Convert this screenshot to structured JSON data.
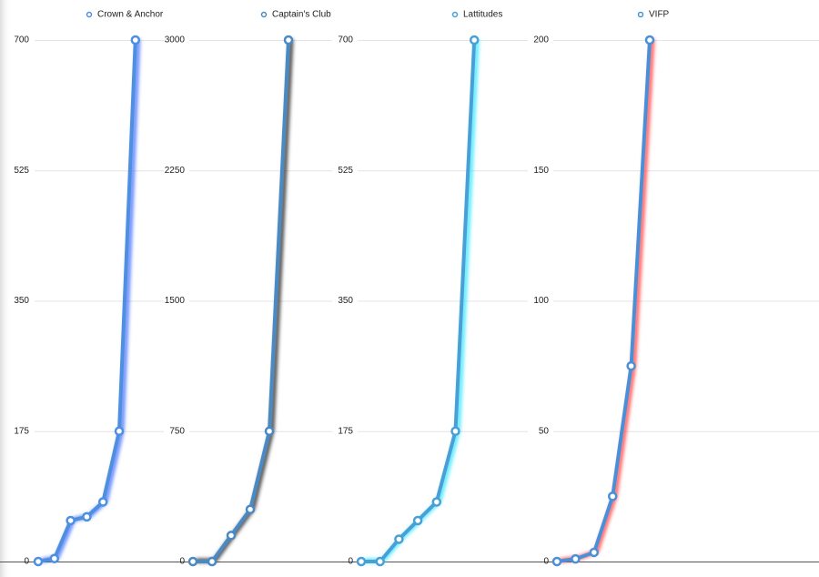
{
  "chart_data": [
    {
      "type": "line",
      "categories": [
        null,
        null,
        null,
        null,
        null,
        null,
        null
      ],
      "series": [
        {
          "name": "Crown & Anchor",
          "color": "#4f8fe0",
          "glow_color": "#3d6bff",
          "values": [
            0,
            4,
            55,
            60,
            80,
            175,
            700
          ]
        }
      ],
      "ylim": [
        0,
        700
      ],
      "yticks": [
        0,
        175,
        350,
        525,
        700
      ],
      "grid": true
    },
    {
      "type": "line",
      "categories": [
        null,
        null,
        null,
        null,
        null,
        null
      ],
      "series": [
        {
          "name": "Captain's Club",
          "color": "#4a8ac4",
          "glow_color": "#222222",
          "values": [
            0,
            0,
            150,
            300,
            750,
            3000
          ]
        }
      ],
      "ylim": [
        0,
        3000
      ],
      "yticks": [
        0,
        750,
        1500,
        2250,
        3000
      ],
      "grid": true
    },
    {
      "type": "line",
      "categories": [
        null,
        null,
        null,
        null,
        null,
        null,
        null
      ],
      "series": [
        {
          "name": "Lattitudes",
          "color": "#4a9fd6",
          "glow_color": "#2ee6ff",
          "values": [
            0,
            0,
            30,
            55,
            80,
            175,
            700
          ]
        }
      ],
      "ylim": [
        0,
        700
      ],
      "yticks": [
        0,
        175,
        350,
        525,
        700
      ],
      "grid": true
    },
    {
      "type": "line",
      "categories": [
        null,
        null,
        null,
        null,
        null,
        null
      ],
      "series": [
        {
          "name": "VIFP",
          "color": "#4a90d9",
          "glow_color": "#ff3b3b",
          "values": [
            0,
            1,
            3.5,
            25,
            75,
            200
          ]
        }
      ],
      "ylim": [
        0,
        200
      ],
      "yticks": [
        0,
        50,
        100,
        150,
        200
      ],
      "grid": true
    }
  ]
}
